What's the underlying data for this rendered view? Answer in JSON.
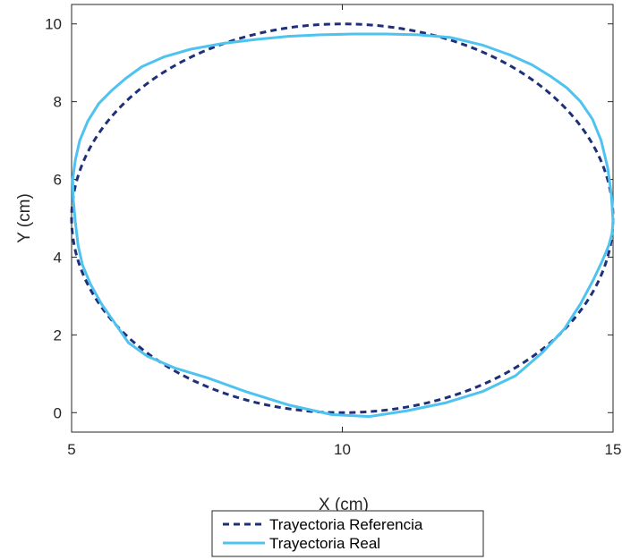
{
  "chart_data": {
    "type": "line",
    "title": "",
    "xlabel": "X (cm)",
    "ylabel": "Y (cm)",
    "xlim": [
      5,
      15
    ],
    "ylim": [
      -0.5,
      10.5
    ],
    "xticks": [
      5,
      10,
      15
    ],
    "yticks": [
      0,
      2,
      4,
      6,
      8,
      10
    ],
    "grid": false,
    "legend_position": "bottom-outside",
    "series": [
      {
        "name": "Trayectoria Referencia",
        "style": "dashed",
        "color": "#1f2f7a",
        "shape": "ellipse",
        "center": [
          10,
          5
        ],
        "radii": [
          5,
          5
        ]
      },
      {
        "name": "Trayectoria Real",
        "style": "solid",
        "color": "#4fc3f0",
        "x": [
          15.0,
          14.97,
          14.9,
          14.78,
          14.62,
          14.4,
          14.15,
          13.85,
          13.5,
          13.1,
          12.6,
          12.0,
          11.4,
          10.8,
          10.2,
          9.6,
          9.0,
          8.4,
          7.8,
          7.2,
          6.7,
          6.3,
          6.0,
          5.75,
          5.5,
          5.3,
          5.15,
          5.07,
          5.02,
          5.03,
          5.07,
          5.12,
          5.2,
          5.35,
          5.55,
          5.8,
          6.05,
          6.4,
          6.9,
          7.5,
          8.2,
          9.0,
          9.8,
          10.5,
          11.2,
          11.9,
          12.6,
          13.2,
          13.7,
          14.1,
          14.4,
          14.63,
          14.8,
          14.92,
          14.98,
          15.0
        ],
        "y": [
          4.9,
          5.6,
          6.3,
          7.0,
          7.55,
          8.0,
          8.35,
          8.65,
          8.95,
          9.2,
          9.45,
          9.65,
          9.72,
          9.74,
          9.74,
          9.72,
          9.68,
          9.6,
          9.5,
          9.35,
          9.15,
          8.9,
          8.6,
          8.3,
          7.95,
          7.5,
          7.0,
          6.5,
          6.0,
          5.5,
          4.9,
          4.3,
          3.8,
          3.3,
          2.8,
          2.3,
          1.8,
          1.45,
          1.15,
          0.9,
          0.55,
          0.2,
          -0.05,
          -0.1,
          0.05,
          0.25,
          0.55,
          0.95,
          1.55,
          2.15,
          2.8,
          3.4,
          3.9,
          4.3,
          4.6,
          4.9
        ]
      }
    ]
  }
}
